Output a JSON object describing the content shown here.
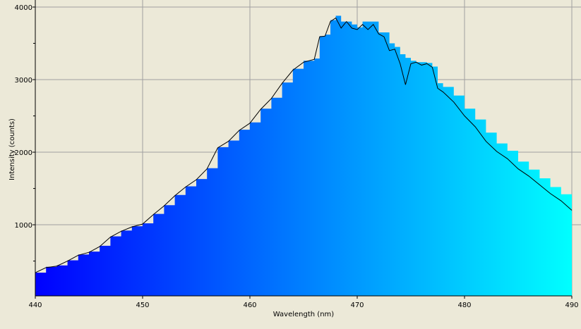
{
  "chart_data": {
    "type": "area",
    "xlabel": "Wavelength (nm)",
    "ylabel": "Intensity (counts)",
    "xlim": [
      440,
      490
    ],
    "ylim": [
      20,
      4000
    ],
    "xticks": [
      "440",
      "450",
      "460",
      "470",
      "480",
      "490"
    ],
    "yticks": [
      "1000",
      "2000",
      "3000",
      "4000"
    ],
    "grid": true,
    "fill_gradient": [
      "#0000ff",
      "#00ffff"
    ],
    "line_color": "#000000",
    "x": [
      440,
      441,
      442,
      443,
      444,
      445,
      446,
      447,
      448,
      449,
      450,
      451,
      452,
      453,
      454,
      455,
      456,
      457,
      458,
      459,
      460,
      461,
      462,
      463,
      464,
      465,
      466,
      466.5,
      467,
      467.5,
      468,
      468.5,
      469,
      469.5,
      470,
      470.5,
      471,
      471.5,
      472,
      472.5,
      473,
      473.5,
      474,
      474.5,
      475,
      475.5,
      476,
      476.5,
      477,
      477.5,
      478,
      479,
      480,
      481,
      482,
      483,
      484,
      485,
      486,
      487,
      488,
      489,
      490
    ],
    "series": [
      {
        "kind": "line",
        "values": [
          340,
          410,
          430,
          500,
          580,
          620,
          700,
          830,
          910,
          970,
          1010,
          1140,
          1260,
          1400,
          1520,
          1620,
          1770,
          2060,
          2150,
          2300,
          2400,
          2590,
          2740,
          2950,
          3130,
          3240,
          3280,
          3590,
          3600,
          3800,
          3850,
          3710,
          3800,
          3710,
          3690,
          3760,
          3690,
          3760,
          3630,
          3590,
          3400,
          3420,
          3220,
          2930,
          3220,
          3240,
          3200,
          3220,
          3170,
          2880,
          2830,
          2690,
          2500,
          2350,
          2150,
          2010,
          1910,
          1770,
          1670,
          1550,
          1430,
          1330,
          1200
        ]
      },
      {
        "kind": "fill",
        "values": [
          340,
          420,
          440,
          510,
          590,
          630,
          710,
          840,
          920,
          980,
          1020,
          1150,
          1270,
          1410,
          1530,
          1630,
          1780,
          2070,
          2160,
          2310,
          2410,
          2600,
          2750,
          2960,
          3150,
          3260,
          3290,
          3600,
          3620,
          3820,
          3880,
          3800,
          3800,
          3760,
          3720,
          3800,
          3800,
          3800,
          3650,
          3650,
          3500,
          3450,
          3350,
          3300,
          3260,
          3240,
          3240,
          3230,
          3180,
          2950,
          2900,
          2780,
          2600,
          2450,
          2270,
          2120,
          2020,
          1870,
          1760,
          1640,
          1520,
          1420,
          1300
        ]
      }
    ]
  }
}
